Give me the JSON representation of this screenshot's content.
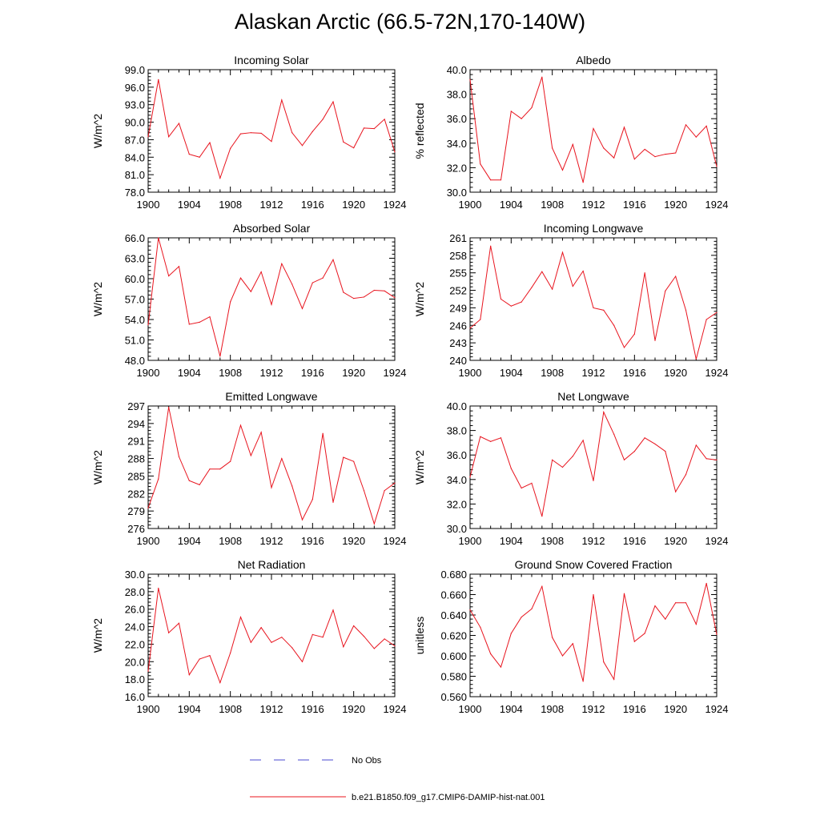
{
  "title": "Alaskan Arctic (66.5-72N,170-140W)",
  "legend": {
    "entries": [
      {
        "label": "No Obs",
        "style": "dashed",
        "color": "#4a4ad0"
      },
      {
        "label": "b.e21.B1850.f09_g17.CMIP6-DAMIP-hist-nat.001",
        "style": "solid",
        "color": "#e8141e"
      }
    ]
  },
  "colors": {
    "series": "#e8141e"
  },
  "chart_data": [
    {
      "type": "line",
      "title": "Incoming Solar",
      "ylabel": "W/m^2",
      "xlabel": "",
      "xlim": [
        1900,
        1924
      ],
      "ylim": [
        78.0,
        99.0
      ],
      "x_ticks": [
        1900,
        1904,
        1908,
        1912,
        1916,
        1920,
        1924
      ],
      "x_tick_labels": [
        "1900",
        "1904",
        "1908",
        "1912",
        "1916",
        "1920",
        "1924"
      ],
      "y_ticks": [
        78,
        81,
        84,
        87,
        90,
        93,
        96,
        99
      ],
      "y_tick_labels": [
        "78.0",
        "81.0",
        "84.0",
        "87.0",
        "90.0",
        "93.0",
        "96.0",
        "99.0"
      ],
      "series": [
        {
          "x_start": 1900,
          "values": [
            87.5,
            97.3,
            87.5,
            89.8,
            84.5,
            84.0,
            86.5,
            80.4,
            85.5,
            88.0,
            88.2,
            88.1,
            86.7,
            93.8,
            88.2,
            86.0,
            88.4,
            90.5,
            93.5,
            86.6,
            85.6,
            89.0,
            88.9,
            90.5,
            84.9
          ]
        }
      ]
    },
    {
      "type": "line",
      "title": "Albedo",
      "ylabel": "% reflected",
      "xlabel": "",
      "xlim": [
        1900,
        1924
      ],
      "ylim": [
        30.0,
        40.0
      ],
      "x_ticks": [
        1900,
        1904,
        1908,
        1912,
        1916,
        1920,
        1924
      ],
      "x_tick_labels": [
        "1900",
        "1904",
        "1908",
        "1912",
        "1916",
        "1920",
        "1924"
      ],
      "y_ticks": [
        30,
        32,
        34,
        36,
        38,
        40
      ],
      "y_tick_labels": [
        "30.0",
        "32.0",
        "34.0",
        "36.0",
        "38.0",
        "40.0"
      ],
      "series": [
        {
          "x_start": 1900,
          "values": [
            39.2,
            32.3,
            31.0,
            31.0,
            36.6,
            36.0,
            36.9,
            39.4,
            33.6,
            31.8,
            33.9,
            30.8,
            35.2,
            33.6,
            32.8,
            35.3,
            32.7,
            33.5,
            32.9,
            33.1,
            33.2,
            35.5,
            34.5,
            35.4,
            32.1
          ]
        }
      ]
    },
    {
      "type": "line",
      "title": "Absorbed Solar",
      "ylabel": "W/m^2",
      "xlabel": "",
      "xlim": [
        1900,
        1924
      ],
      "ylim": [
        48.0,
        66.0
      ],
      "x_ticks": [
        1900,
        1904,
        1908,
        1912,
        1916,
        1920,
        1924
      ],
      "x_tick_labels": [
        "1900",
        "1904",
        "1908",
        "1912",
        "1916",
        "1920",
        "1924"
      ],
      "y_ticks": [
        48,
        51,
        54,
        57,
        60,
        63,
        66
      ],
      "y_tick_labels": [
        "48.0",
        "51.0",
        "54.0",
        "57.0",
        "60.0",
        "63.0",
        "66.0"
      ],
      "series": [
        {
          "x_start": 1900,
          "values": [
            53.2,
            66.0,
            60.4,
            61.8,
            53.3,
            53.6,
            54.4,
            48.6,
            56.6,
            60.1,
            58.1,
            61.0,
            56.2,
            62.2,
            59.2,
            55.6,
            59.4,
            60.1,
            62.8,
            58.0,
            57.1,
            57.3,
            58.3,
            58.2,
            57.2
          ]
        }
      ]
    },
    {
      "type": "line",
      "title": "Incoming Longwave",
      "ylabel": "W/m^2",
      "xlabel": "",
      "xlim": [
        1900,
        1924
      ],
      "ylim": [
        240,
        261
      ],
      "x_ticks": [
        1900,
        1904,
        1908,
        1912,
        1916,
        1920,
        1924
      ],
      "x_tick_labels": [
        "1900",
        "1904",
        "1908",
        "1912",
        "1916",
        "1920",
        "1924"
      ],
      "y_ticks": [
        240,
        243,
        246,
        249,
        252,
        255,
        258,
        261
      ],
      "y_tick_labels": [
        "240",
        "243",
        "246",
        "249",
        "252",
        "255",
        "258",
        "261"
      ],
      "series": [
        {
          "x_start": 1900,
          "values": [
            245.5,
            247.0,
            259.6,
            250.5,
            249.3,
            250.0,
            252.5,
            255.2,
            252.2,
            258.5,
            252.7,
            255.3,
            249.0,
            248.6,
            246.0,
            242.2,
            244.5,
            255.0,
            243.4,
            251.9,
            254.4,
            248.6,
            240.2,
            247.0,
            248.2
          ]
        }
      ]
    },
    {
      "type": "line",
      "title": "Emitted Longwave",
      "ylabel": "W/m^2",
      "xlabel": "",
      "xlim": [
        1900,
        1924
      ],
      "ylim": [
        276,
        297
      ],
      "x_ticks": [
        1900,
        1904,
        1908,
        1912,
        1916,
        1920,
        1924
      ],
      "x_tick_labels": [
        "1900",
        "1904",
        "1908",
        "1912",
        "1916",
        "1920",
        "1924"
      ],
      "y_ticks": [
        276,
        279,
        282,
        285,
        288,
        291,
        294,
        297
      ],
      "y_tick_labels": [
        "276",
        "279",
        "282",
        "285",
        "288",
        "291",
        "294",
        "297"
      ],
      "series": [
        {
          "x_start": 1900,
          "values": [
            279.5,
            284.5,
            296.8,
            288.3,
            284.2,
            283.5,
            286.2,
            286.2,
            287.5,
            293.7,
            288.5,
            292.5,
            283.0,
            288.0,
            283.3,
            277.5,
            281.0,
            292.3,
            280.5,
            288.2,
            287.5,
            282.5,
            276.8,
            282.5,
            283.8
          ]
        }
      ]
    },
    {
      "type": "line",
      "title": "Net Longwave",
      "ylabel": "W/m^2",
      "xlabel": "",
      "xlim": [
        1900,
        1924
      ],
      "ylim": [
        30.0,
        40.0
      ],
      "x_ticks": [
        1900,
        1904,
        1908,
        1912,
        1916,
        1920,
        1924
      ],
      "x_tick_labels": [
        "1900",
        "1904",
        "1908",
        "1912",
        "1916",
        "1920",
        "1924"
      ],
      "y_ticks": [
        30,
        32,
        34,
        36,
        38,
        40
      ],
      "y_tick_labels": [
        "30.0",
        "32.0",
        "34.0",
        "36.0",
        "38.0",
        "40.0"
      ],
      "series": [
        {
          "x_start": 1900,
          "values": [
            34.2,
            37.5,
            37.1,
            37.4,
            34.9,
            33.3,
            33.7,
            31.0,
            35.6,
            35.0,
            35.9,
            37.2,
            33.9,
            39.5,
            37.7,
            35.6,
            36.3,
            37.4,
            36.9,
            36.3,
            33.0,
            34.4,
            36.8,
            35.7,
            35.6
          ]
        }
      ]
    },
    {
      "type": "line",
      "title": "Net Radiation",
      "ylabel": "W/m^2",
      "xlabel": "",
      "xlim": [
        1900,
        1924
      ],
      "ylim": [
        16.0,
        30.0
      ],
      "x_ticks": [
        1900,
        1904,
        1908,
        1912,
        1916,
        1920,
        1924
      ],
      "x_tick_labels": [
        "1900",
        "1904",
        "1908",
        "1912",
        "1916",
        "1920",
        "1924"
      ],
      "y_ticks": [
        16,
        18,
        20,
        22,
        24,
        26,
        28,
        30
      ],
      "y_tick_labels": [
        "16.0",
        "18.0",
        "20.0",
        "22.0",
        "24.0",
        "26.0",
        "28.0",
        "30.0"
      ],
      "series": [
        {
          "x_start": 1900,
          "values": [
            18.9,
            28.4,
            23.3,
            24.4,
            18.5,
            20.3,
            20.7,
            17.6,
            21.0,
            25.1,
            22.2,
            23.9,
            22.2,
            22.8,
            21.6,
            20.0,
            23.1,
            22.8,
            25.9,
            21.7,
            24.1,
            22.9,
            21.5,
            22.6,
            21.8
          ]
        }
      ]
    },
    {
      "type": "line",
      "title": "Ground Snow Covered Fraction",
      "ylabel": "unitless",
      "xlabel": "",
      "xlim": [
        1900,
        1924
      ],
      "ylim": [
        0.56,
        0.68
      ],
      "x_ticks": [
        1900,
        1904,
        1908,
        1912,
        1916,
        1920,
        1924
      ],
      "x_tick_labels": [
        "1900",
        "1904",
        "1908",
        "1912",
        "1916",
        "1920",
        "1924"
      ],
      "y_ticks": [
        0.56,
        0.58,
        0.6,
        0.62,
        0.64,
        0.66,
        0.68
      ],
      "y_tick_labels": [
        "0.560",
        "0.580",
        "0.600",
        "0.620",
        "0.640",
        "0.660",
        "0.680"
      ],
      "series": [
        {
          "x_start": 1900,
          "values": [
            0.645,
            0.628,
            0.602,
            0.589,
            0.622,
            0.638,
            0.646,
            0.668,
            0.618,
            0.6,
            0.612,
            0.575,
            0.66,
            0.594,
            0.577,
            0.661,
            0.614,
            0.622,
            0.649,
            0.636,
            0.652,
            0.652,
            0.631,
            0.671,
            0.621
          ]
        }
      ]
    }
  ]
}
